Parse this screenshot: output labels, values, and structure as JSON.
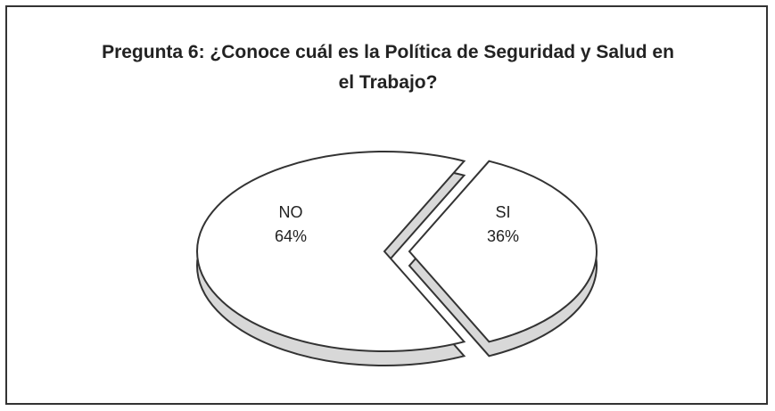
{
  "chart_data": {
    "type": "pie",
    "title": "Pregunta 6: ¿Conoce cuál es la Política de Seguridad y Salud en el Trabajo?",
    "categories": [
      "NO",
      "SI"
    ],
    "values": [
      64,
      36
    ],
    "value_labels": [
      "64%",
      "36%"
    ],
    "colors": [
      "#ffffff",
      "#ffffff"
    ]
  }
}
